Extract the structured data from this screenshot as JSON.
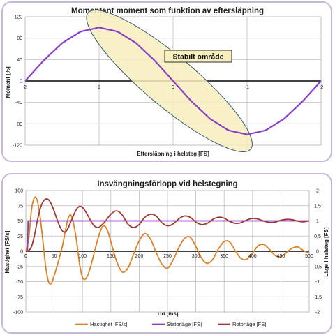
{
  "chart_data": [
    {
      "type": "line",
      "title": "Momentant moment som funktion av eftersläpning",
      "xlabel": "Eftersläpning i helsteg [FS]",
      "ylabel": "Moment [%]",
      "xlim": [
        2,
        -2
      ],
      "ylim": [
        -120,
        120
      ],
      "x_ticks": [
        "2",
        "1",
        "0",
        "-1",
        "-2"
      ],
      "y_ticks": [
        "120",
        "80",
        "40",
        "0",
        "-40",
        "-80",
        "-120"
      ],
      "grid": true,
      "series": [
        {
          "color": "#8a3fc6",
          "x": [
            2,
            1.75,
            1.5,
            1.25,
            1,
            0.75,
            0.5,
            0.25,
            0,
            -0.25,
            -0.5,
            -0.75,
            -1,
            -1.25,
            -1.5,
            -1.75,
            -2
          ],
          "y": [
            0,
            38.3,
            70.7,
            92.4,
            100,
            92.4,
            70.7,
            38.3,
            0,
            -38.3,
            -70.7,
            -92.4,
            -100,
            -92.4,
            -70.7,
            -38.3,
            0
          ]
        }
      ],
      "annotation": {
        "text": "Stabilt område",
        "color": "#f7eebd"
      }
    },
    {
      "type": "line",
      "title": "Insvängningsförlopp vid helstegning",
      "xlabel": "Tid [ms]",
      "ylabel": "Hastighet [FS/s]",
      "y2label": "Läge i helsteg [FS]",
      "xlim": [
        0,
        500
      ],
      "ylim": [
        -100,
        100
      ],
      "y2lim": [
        -2,
        2
      ],
      "x_ticks": [
        "0",
        "50",
        "100",
        "150",
        "200",
        "250",
        "300",
        "350",
        "400",
        "450",
        "500"
      ],
      "y_ticks": [
        "100",
        "75",
        "50",
        "25",
        "0",
        "-25",
        "-50",
        "-75",
        "-100"
      ],
      "y2_ticks": [
        "2",
        "1,5",
        "1",
        "0,5",
        "0",
        "-0,5",
        "-1",
        "-1,5",
        "-2"
      ],
      "grid": true,
      "legend": "bottom",
      "series": [
        {
          "name": "Hastighet [FS/s]",
          "axis": "left",
          "color": "#d9822b",
          "x": [
            0,
            5,
            10,
            15,
            20,
            25,
            30,
            35,
            40,
            45,
            50,
            55,
            60,
            65,
            70,
            75,
            80,
            85,
            90,
            95,
            100,
            105,
            110,
            115,
            120,
            125,
            130,
            135,
            140,
            145,
            150,
            160,
            170,
            180,
            190,
            200,
            210,
            220,
            230,
            240,
            250,
            260,
            270,
            280,
            290,
            300,
            310,
            320,
            330,
            340,
            350,
            360,
            370,
            380,
            390,
            400,
            410,
            420,
            430,
            440,
            450,
            460,
            470,
            480,
            490,
            500
          ],
          "y": [
            0,
            20,
            68,
            88,
            84,
            58,
            18,
            -25,
            -50,
            -53,
            -40,
            -25,
            -8,
            10,
            35,
            55,
            59,
            42,
            14,
            -22,
            -43,
            -46,
            -38,
            -23,
            -5,
            13,
            29,
            40,
            41,
            32,
            16,
            -16,
            -34,
            -28,
            -5,
            17,
            29,
            20,
            -2,
            -21,
            -28,
            -14,
            6,
            21,
            23,
            8,
            -11,
            -20,
            -13,
            4,
            16,
            15,
            0,
            -12,
            -13,
            -3,
            9,
            11,
            3,
            -7,
            -9,
            -2,
            5,
            7,
            1,
            -3
          ]
        },
        {
          "name": "Statorläge [FS]",
          "axis": "right",
          "color": "#8a3fc6",
          "x": [
            0,
            3,
            4,
            500
          ],
          "y": [
            0,
            0,
            1,
            1
          ]
        },
        {
          "name": "Rotorläge [FS]",
          "axis": "right",
          "color": "#9b3a3a",
          "x": [
            0,
            5,
            10,
            15,
            20,
            25,
            30,
            35,
            40,
            45,
            50,
            55,
            60,
            65,
            70,
            75,
            80,
            85,
            90,
            95,
            100,
            105,
            110,
            115,
            120,
            125,
            130,
            140,
            150,
            160,
            170,
            180,
            190,
            200,
            210,
            220,
            230,
            240,
            250,
            260,
            270,
            280,
            290,
            300,
            310,
            320,
            330,
            340,
            350,
            360,
            370,
            380,
            390,
            400,
            410,
            420,
            430,
            440,
            450,
            460,
            470,
            480,
            490,
            500
          ],
          "y": [
            0,
            0.02,
            0.15,
            0.5,
            0.98,
            1.38,
            1.62,
            1.72,
            1.7,
            1.55,
            1.32,
            1.05,
            0.82,
            0.66,
            0.64,
            0.78,
            1.0,
            1.22,
            1.4,
            1.48,
            1.44,
            1.32,
            1.16,
            0.99,
            0.85,
            0.79,
            0.8,
            0.98,
            1.22,
            1.33,
            1.2,
            0.9,
            0.78,
            0.88,
            1.12,
            1.22,
            1.16,
            0.94,
            0.84,
            0.9,
            1.07,
            1.16,
            1.12,
            0.96,
            0.88,
            0.92,
            1.05,
            1.12,
            1.09,
            0.98,
            0.92,
            0.94,
            1.03,
            1.08,
            1.06,
            0.99,
            0.95,
            0.96,
            1.02,
            1.05,
            1.04,
            0.99,
            0.97,
            1.0
          ]
        }
      ]
    }
  ]
}
